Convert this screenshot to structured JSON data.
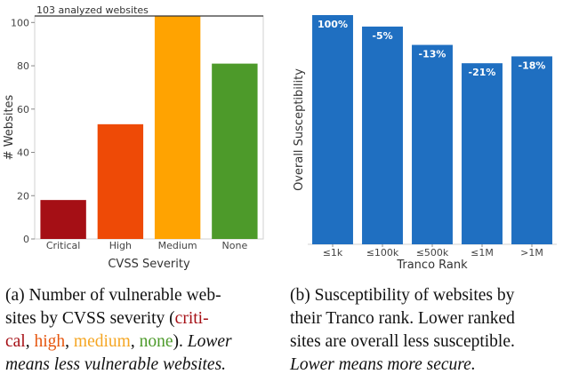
{
  "colors": {
    "critical": "#a50f15",
    "high": "#ee4a06",
    "medium": "#ffa301",
    "none": "#4d9a2a",
    "blue": "#1f6fc1"
  },
  "chart_data": [
    {
      "type": "bar",
      "categories": [
        "Critical",
        "High",
        "Medium",
        "None"
      ],
      "values": [
        18,
        53,
        103,
        81
      ],
      "xlabel": "CVSS Severity",
      "ylabel": "# Websites",
      "ylim": [
        0,
        103
      ],
      "yticks": [
        0,
        20,
        40,
        60,
        80,
        100
      ],
      "annotation": "103 analyzed websites",
      "annotation_value": 103,
      "grid": false
    },
    {
      "type": "bar",
      "categories": [
        "≤1k",
        "≤100k",
        "≤500k",
        "≤1M",
        ">1M"
      ],
      "values": [
        100,
        95,
        87,
        79,
        82
      ],
      "data_labels": [
        "100%",
        "-5%",
        "-13%",
        "-21%",
        "-18%"
      ],
      "xlabel": "Tranco Rank",
      "ylabel": "Overall Susceptibility",
      "ylim": [
        0,
        100
      ],
      "yticks": [],
      "grid": false
    }
  ],
  "captions": {
    "a": {
      "line1": "(a) Number of vulnerable web-",
      "line2_prefix": "sites by CVSS severity (",
      "line2_critical": "criti-",
      "line3_critical": "cal",
      "sep1": ", ",
      "high": "high",
      "sep2": ", ",
      "medium": "medium",
      "sep3": ", ",
      "none": "none",
      "line3_suffix": "). ",
      "line3_italic": "Lower",
      "line4": "means less vulnerable websites."
    },
    "b": {
      "line1": "(b) Susceptibility of websites by",
      "line2": "their Tranco rank. Lower ranked",
      "line3": "sites are overall less susceptible.",
      "line4": "Lower means more secure."
    }
  }
}
